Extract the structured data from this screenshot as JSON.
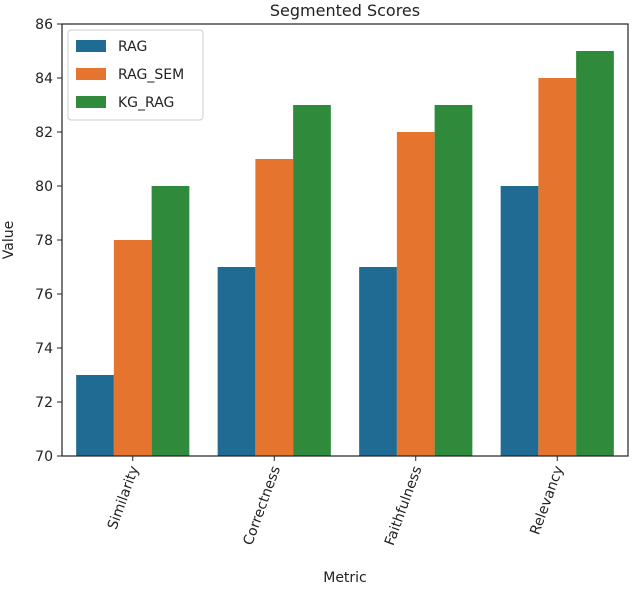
{
  "chart_data": {
    "type": "bar",
    "title": "Segmented Scores",
    "xlabel": "Metric",
    "ylabel": "Value",
    "categories": [
      "Similarity",
      "Correctness",
      "Faithfulness",
      "Relevancy"
    ],
    "series": [
      {
        "name": "RAG",
        "color": "#1f6b94",
        "values": [
          73,
          77,
          77,
          80
        ]
      },
      {
        "name": "RAG_SEM",
        "color": "#e5742f",
        "values": [
          78,
          81,
          82,
          84
        ]
      },
      {
        "name": "KG_RAG",
        "color": "#2f8a3c",
        "values": [
          80,
          83,
          83,
          85
        ]
      }
    ],
    "ylim": [
      70,
      86
    ],
    "yticks": [
      70,
      72,
      74,
      76,
      78,
      80,
      82,
      84,
      86
    ],
    "grid": false,
    "legend_position": "top-left",
    "xtick_rotation": -70
  }
}
